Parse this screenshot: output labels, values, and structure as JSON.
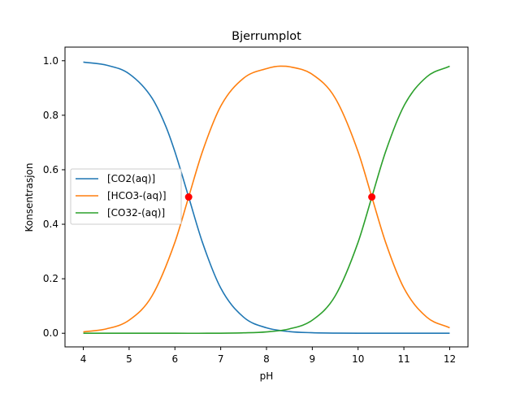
{
  "chart_data": {
    "type": "line",
    "title": "Bjerrumplot",
    "xlabel": "pH",
    "ylabel": "Konsentrasjon",
    "xlim": [
      3.6,
      12.4
    ],
    "ylim": [
      -0.05,
      1.05
    ],
    "xticks": [
      4,
      5,
      6,
      7,
      8,
      9,
      10,
      11,
      12
    ],
    "xtick_labels": [
      "4",
      "5",
      "6",
      "7",
      "8",
      "9",
      "10",
      "11",
      "12"
    ],
    "yticks": [
      0.0,
      0.2,
      0.4,
      0.6,
      0.8,
      1.0
    ],
    "ytick_labels": [
      "0.0",
      "0.2",
      "0.4",
      "0.6",
      "0.8",
      "1.0"
    ],
    "grid": false,
    "legend_position": "center-left",
    "pKa": [
      6.3,
      10.3
    ],
    "series": [
      {
        "name": "[CO2(aq)]",
        "color": "#1f77b4",
        "x": [
          4,
          4.5,
          5,
          5.5,
          5.8,
          6,
          6.3,
          6.6,
          7,
          7.5,
          8,
          8.5,
          9,
          9.5,
          10,
          11,
          12
        ],
        "y": [
          0.995,
          0.984,
          0.952,
          0.863,
          0.76,
          0.666,
          0.5,
          0.334,
          0.166,
          0.059,
          0.02,
          0.006,
          0.002,
          0.0005,
          0.0001,
          0.0,
          0.0
        ]
      },
      {
        "name": "[HCO3-(aq)]",
        "color": "#ff7f0e",
        "x": [
          4,
          4.5,
          5,
          5.5,
          6,
          6.3,
          6.6,
          7,
          7.5,
          8,
          8.3,
          8.5,
          9,
          9.5,
          10,
          10.3,
          10.6,
          11,
          11.5,
          12
        ],
        "y": [
          0.005,
          0.016,
          0.048,
          0.137,
          0.334,
          0.5,
          0.666,
          0.833,
          0.936,
          0.971,
          0.98,
          0.978,
          0.95,
          0.863,
          0.666,
          0.5,
          0.334,
          0.166,
          0.059,
          0.02
        ]
      },
      {
        "name": "[CO32-(aq)]",
        "color": "#2ca02c",
        "x": [
          4,
          6,
          7,
          7.5,
          8,
          8.5,
          9,
          9.5,
          10,
          10.3,
          10.6,
          11,
          11.5,
          12
        ],
        "y": [
          0.0,
          0.0,
          0.0002,
          0.0015,
          0.005,
          0.016,
          0.048,
          0.137,
          0.334,
          0.5,
          0.666,
          0.834,
          0.941,
          0.98
        ]
      }
    ],
    "markers": [
      {
        "x": 6.3,
        "y": 0.5,
        "color": "#ff0000"
      },
      {
        "x": 10.3,
        "y": 0.5,
        "color": "#ff0000"
      }
    ]
  }
}
